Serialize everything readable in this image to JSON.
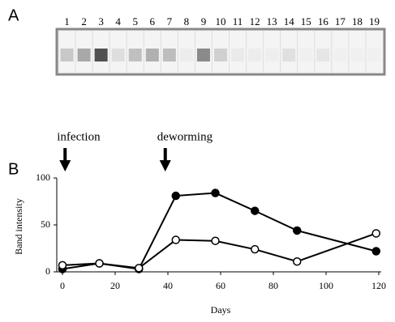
{
  "blot": {
    "panel_label": "A",
    "lanes": [
      "1",
      "2",
      "3",
      "4",
      "5",
      "6",
      "7",
      "8",
      "9",
      "10",
      "11",
      "12",
      "13",
      "14",
      "15",
      "16",
      "17",
      "18",
      "19"
    ]
  },
  "chart_data": {
    "type": "line",
    "panel_label": "B",
    "x_label": "Days",
    "y_label": "Band intensity",
    "annotations": [
      {
        "text": "infection",
        "x": 1
      },
      {
        "text": "deworming",
        "x": 39
      }
    ],
    "xlim": [
      0,
      120
    ],
    "xticks": [
      0,
      20,
      40,
      60,
      80,
      100,
      120
    ],
    "ylim": [
      0,
      100
    ],
    "yticks": [
      0,
      50,
      100
    ],
    "series": [
      {
        "color": "#000000",
        "marker_fill": "#000000",
        "x": [
          0,
          14,
          29,
          43,
          58,
          73,
          89,
          119
        ],
        "values": [
          3,
          9,
          3,
          81,
          84,
          65,
          44,
          22
        ]
      },
      {
        "color": "#000000",
        "marker_fill": "#ffffff",
        "x": [
          0,
          14,
          29,
          43,
          58,
          73,
          89,
          119
        ],
        "values": [
          7,
          9,
          4,
          34,
          33,
          24,
          11,
          41
        ]
      }
    ]
  }
}
